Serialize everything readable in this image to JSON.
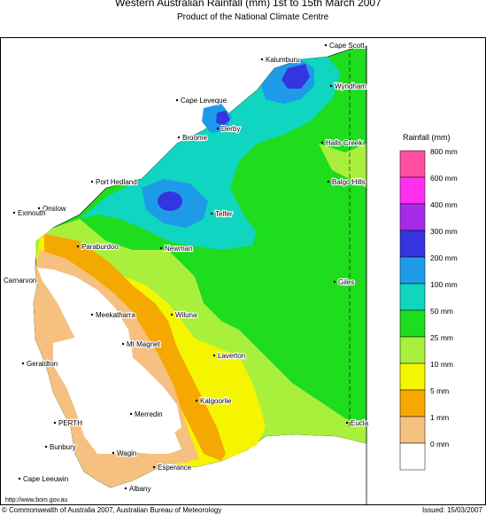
{
  "title": {
    "main": "Western Australian Rainfall (mm)",
    "period": "1st to 15th March 2007",
    "subtitle": "Product of the National Climate Centre"
  },
  "legend": {
    "title": "Rainfall (mm)",
    "bins": [
      {
        "label": "800 mm",
        "color": "#ff4fa0"
      },
      {
        "label": "600 mm",
        "color": "#ff2ef0"
      },
      {
        "label": "400 mm",
        "color": "#a52be8"
      },
      {
        "label": "300 mm",
        "color": "#3535e0"
      },
      {
        "label": "200 mm",
        "color": "#1e9be8"
      },
      {
        "label": "100 mm",
        "color": "#10d5c0"
      },
      {
        "label": "50 mm",
        "color": "#1edc1e"
      },
      {
        "label": "25 mm",
        "color": "#a8f03c"
      },
      {
        "label": "10 mm",
        "color": "#f5f500"
      },
      {
        "label": "5 mm",
        "color": "#f5a800"
      },
      {
        "label": "1 mm",
        "color": "#f5c080"
      },
      {
        "label": "0 mm",
        "color": "#ffffff"
      }
    ]
  },
  "places": [
    {
      "name": "Cape Scott"
    },
    {
      "name": "Kalumburu"
    },
    {
      "name": "Wyndham"
    },
    {
      "name": "Cape Leveque"
    },
    {
      "name": "Derby"
    },
    {
      "name": "Broome"
    },
    {
      "name": "Halls Creek"
    },
    {
      "name": "Balgo Hills"
    },
    {
      "name": "Port Hedland"
    },
    {
      "name": "Telfer"
    },
    {
      "name": "Onslow"
    },
    {
      "name": "Exmouth"
    },
    {
      "name": "Paraburdoo"
    },
    {
      "name": "Newman"
    },
    {
      "name": "Giles"
    },
    {
      "name": "Carnarvon"
    },
    {
      "name": "Meekatharra"
    },
    {
      "name": "Wiluna"
    },
    {
      "name": "Mt Magnet"
    },
    {
      "name": "Laverton"
    },
    {
      "name": "Geraldton"
    },
    {
      "name": "Kalgoorlie"
    },
    {
      "name": "Merredin"
    },
    {
      "name": "PERTH"
    },
    {
      "name": "Eucla"
    },
    {
      "name": "Bunbury"
    },
    {
      "name": "Wagin"
    },
    {
      "name": "Esperance"
    },
    {
      "name": "Cape Leeuwin"
    },
    {
      "name": "Albany"
    }
  ],
  "footer": {
    "url": "http://www.bom.gov.au",
    "copyright": "© Commonwealth of Australia 2007, Australian Bureau of Meteorology",
    "issued": "Issued: 15/03/2007"
  }
}
